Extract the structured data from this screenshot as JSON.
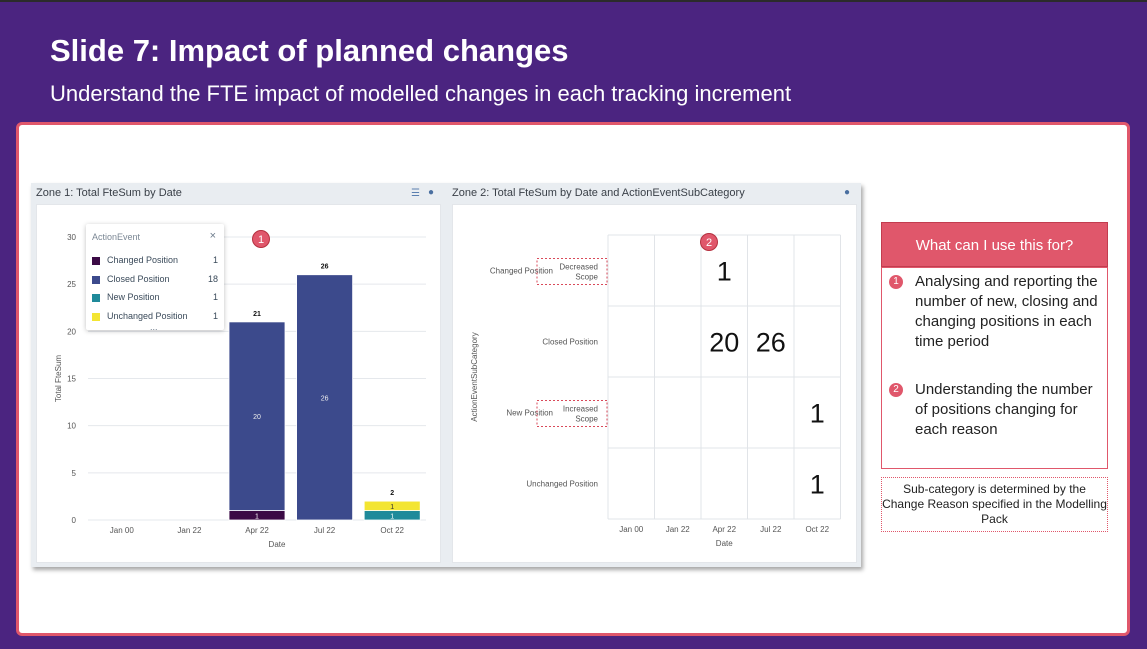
{
  "slide": {
    "title": "Slide 7: Impact of planned changes",
    "subtitle": "Understand the FTE impact of modelled changes in each tracking increment"
  },
  "zone1": {
    "title": "Zone 1: Total FteSum by Date",
    "icons": [
      "list-icon",
      "palette-icon"
    ],
    "badge": "1",
    "legend": {
      "title": "ActionEvent",
      "close": "×",
      "more": "...",
      "items": [
        {
          "name": "Changed Position",
          "value": "1",
          "color": "#3b0a45"
        },
        {
          "name": "Closed Position",
          "value": "18",
          "color": "#3c4a8c"
        },
        {
          "name": "New Position",
          "value": "1",
          "color": "#1f8a9a"
        },
        {
          "name": "Unchanged Position",
          "value": "1",
          "color": "#f3e532"
        }
      ]
    }
  },
  "zone2": {
    "title": "Zone 2: Total FteSum by Date and ActionEventSubCategory",
    "icons": [
      "palette-icon"
    ],
    "badge": "2"
  },
  "chart_data": [
    {
      "type": "bar",
      "title": "Zone 1: Total FteSum by Date",
      "xlabel": "Date",
      "ylabel": "Total FteSum",
      "ylim": [
        0,
        30
      ],
      "yticks": [
        0,
        5,
        10,
        15,
        20,
        25,
        30
      ],
      "categories": [
        "Jan 00",
        "Jan 22",
        "Apr 22",
        "Jul 22",
        "Oct 22"
      ],
      "stacked": true,
      "series": [
        {
          "name": "Changed Position",
          "color": "#3b0a45",
          "values": [
            0,
            0,
            1,
            0,
            0
          ]
        },
        {
          "name": "Closed Position",
          "color": "#3c4a8c",
          "values": [
            0,
            0,
            20,
            26,
            0
          ]
        },
        {
          "name": "New Position",
          "color": "#1f8a9a",
          "values": [
            0,
            0,
            0,
            0,
            1
          ]
        },
        {
          "name": "Unchanged Position",
          "color": "#f3e532",
          "values": [
            0,
            0,
            0,
            0,
            1
          ]
        }
      ],
      "totals": [
        null,
        null,
        "21",
        "26",
        "2"
      ]
    },
    {
      "type": "table",
      "title": "Zone 2: Total FteSum by Date and ActionEventSubCategory",
      "xlabel": "Date",
      "ylabel": "ActionEventSubCategory",
      "columns": [
        "Jan 00",
        "Jan 22",
        "Apr 22",
        "Jul 22",
        "Oct 22"
      ],
      "rows": [
        {
          "label": "Changed Position",
          "sublabel": "Decreased Scope",
          "values": [
            null,
            null,
            "1",
            null,
            null
          ]
        },
        {
          "label": "Closed Position",
          "sublabel": "",
          "values": [
            null,
            null,
            "20",
            "26",
            null
          ]
        },
        {
          "label": "New Position",
          "sublabel": "Increased Scope",
          "values": [
            null,
            null,
            null,
            null,
            "1"
          ]
        },
        {
          "label": "Unchanged Position",
          "sublabel": "",
          "values": [
            null,
            null,
            null,
            null,
            "1"
          ]
        }
      ]
    }
  ],
  "side": {
    "heading": "What can I use this for?",
    "items": [
      {
        "badge": "1",
        "text": "Analysing and reporting the number of new, closing and changing positions in each time period"
      },
      {
        "badge": "2",
        "text": "Understanding the number of positions changing for each reason"
      }
    ],
    "note": "Sub-category is determined by the Change Reason specified in the Modelling Pack"
  }
}
